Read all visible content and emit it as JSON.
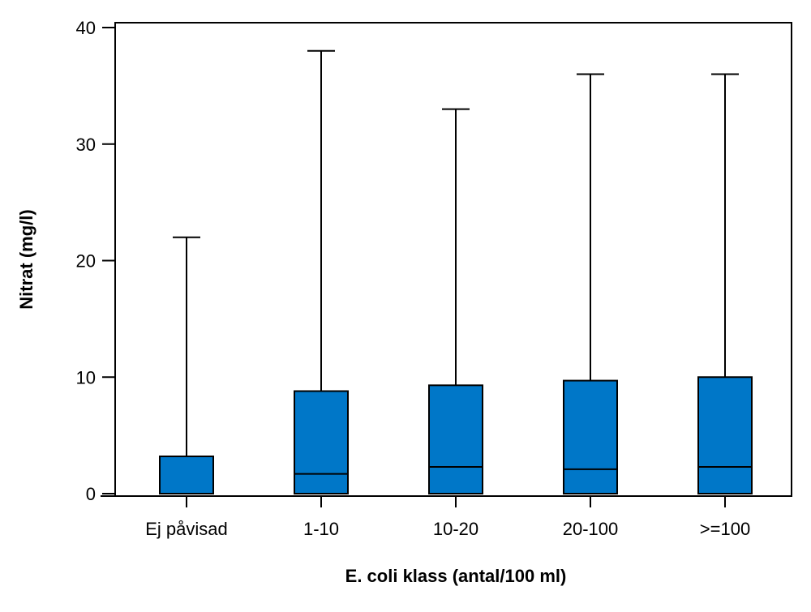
{
  "chart_data": {
    "type": "boxplot",
    "title": "",
    "xlabel": "E. coli klass (antal/100 ml)",
    "ylabel": "Nitrat (mg/l)",
    "ylim": [
      0,
      40
    ],
    "yticks": [
      0,
      10,
      20,
      30,
      40
    ],
    "grid": false,
    "categories": [
      "Ej påvisad",
      "1-10",
      "10-20",
      "20-100",
      ">=100"
    ],
    "boxes": [
      {
        "category": "Ej påvisad",
        "min": 0,
        "q1": 0,
        "median": 0,
        "q3": 3.2,
        "max": 22
      },
      {
        "category": "1-10",
        "min": 0,
        "q1": 0,
        "median": 1.7,
        "q3": 8.8,
        "max": 38
      },
      {
        "category": "10-20",
        "min": 0,
        "q1": 0,
        "median": 2.3,
        "q3": 9.3,
        "max": 33
      },
      {
        "category": "20-100",
        "min": 0,
        "q1": 0,
        "median": 2.1,
        "q3": 9.7,
        "max": 36
      },
      {
        "category": ">=100",
        "min": 0,
        "q1": 0,
        "median": 2.3,
        "q3": 10.0,
        "max": 36
      }
    ]
  },
  "colors": {
    "box_fill": "#0077c8",
    "stroke": "#000000"
  }
}
